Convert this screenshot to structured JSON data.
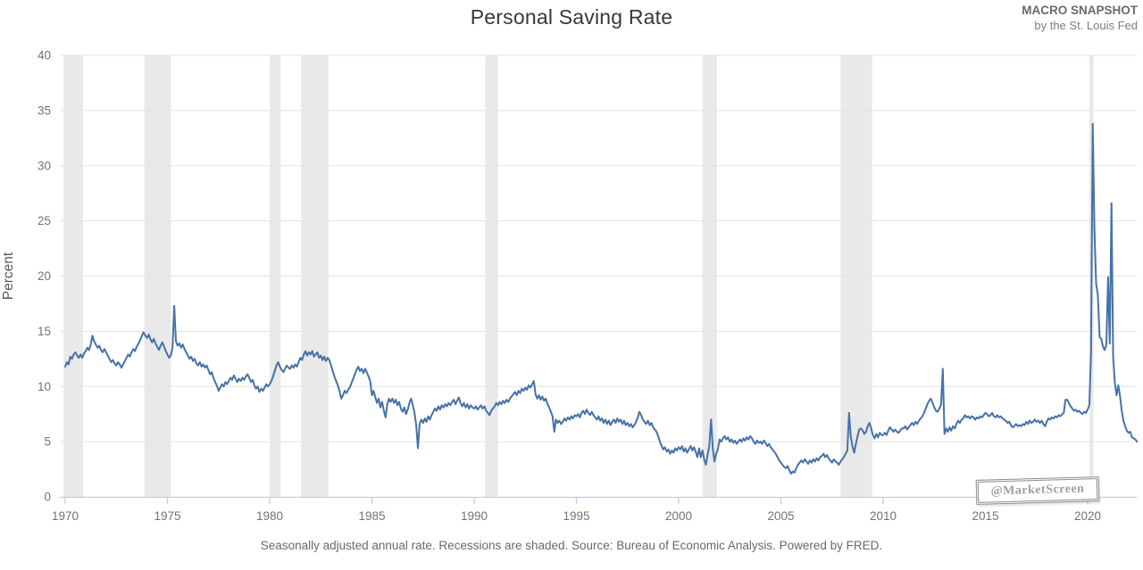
{
  "header": {
    "title": "Personal Saving Rate",
    "brand_line1": "MACRO SNAPSHOT",
    "brand_line2": "by the St. Louis Fed"
  },
  "caption": "Seasonally adjusted annual rate. Recessions are shaded. Source: Bureau of Economic Analysis. Powered by FRED.",
  "watermark": "@MarketScreen",
  "chart_data": {
    "type": "line",
    "title": "Personal Saving Rate",
    "ylabel": "Percent",
    "ylim": [
      0,
      40
    ],
    "yticks": [
      0,
      5,
      10,
      15,
      20,
      25,
      30,
      35,
      40
    ],
    "xticks": [
      1970,
      1975,
      1980,
      1985,
      1990,
      1995,
      2000,
      2005,
      2010,
      2015,
      2020
    ],
    "x_start": 1970.0,
    "x_step": "monthly",
    "x_end": 2022.42,
    "grid": true,
    "legend": "none",
    "line_color": "#4572a7",
    "recession_color": "#e9e9e9",
    "grid_color": "#e3e3e3",
    "axis_color": "#c3cdde",
    "tick_label_color": "#737373",
    "recessions": [
      [
        1969.92,
        1970.87
      ],
      [
        1973.87,
        1975.17
      ],
      [
        1980.0,
        1980.54
      ],
      [
        1981.54,
        1982.87
      ],
      [
        1990.54,
        1991.17
      ],
      [
        2001.17,
        2001.87
      ],
      [
        2007.92,
        2009.46
      ],
      [
        2020.08,
        2020.29
      ]
    ],
    "values": [
      11.8,
      12.2,
      12.0,
      12.7,
      12.5,
      12.9,
      13.1,
      12.8,
      12.6,
      12.9,
      12.6,
      13.0,
      13.2,
      13.5,
      13.3,
      13.8,
      14.6,
      14.1,
      13.8,
      13.5,
      13.7,
      13.3,
      13.1,
      13.4,
      13.1,
      12.8,
      12.5,
      12.2,
      12.4,
      12.1,
      11.9,
      12.2,
      12.0,
      11.7,
      12.0,
      12.3,
      12.6,
      12.9,
      12.7,
      13.1,
      13.4,
      13.2,
      13.6,
      13.9,
      14.2,
      14.6,
      14.9,
      14.6,
      14.4,
      14.7,
      14.3,
      14.0,
      14.3,
      13.9,
      13.6,
      13.3,
      13.7,
      14.0,
      13.6,
      13.2,
      12.9,
      12.6,
      12.8,
      13.5,
      17.3,
      14.1,
      13.7,
      13.9,
      13.5,
      13.8,
      13.4,
      13.1,
      12.8,
      12.5,
      12.7,
      12.3,
      12.5,
      12.1,
      11.9,
      12.2,
      11.8,
      12.0,
      11.7,
      11.9,
      11.5,
      11.1,
      11.3,
      10.8,
      10.4,
      10.1,
      9.6,
      9.9,
      10.2,
      10.0,
      10.4,
      10.2,
      10.5,
      10.8,
      10.6,
      11.0,
      10.7,
      10.4,
      10.7,
      10.5,
      10.8,
      10.6,
      10.9,
      11.1,
      10.8,
      10.4,
      10.6,
      10.1,
      9.8,
      10.0,
      9.5,
      9.8,
      9.6,
      9.9,
      10.2,
      10.0,
      10.2,
      10.5,
      10.9,
      11.4,
      11.9,
      12.2,
      11.8,
      11.5,
      11.3,
      11.6,
      11.9,
      11.7,
      11.6,
      11.9,
      11.7,
      12.0,
      11.8,
      12.2,
      12.6,
      12.4,
      12.9,
      13.2,
      12.8,
      13.1,
      12.9,
      13.2,
      12.7,
      12.9,
      13.1,
      12.6,
      12.8,
      12.4,
      12.7,
      12.3,
      12.6,
      12.4,
      11.9,
      11.4,
      10.9,
      10.5,
      10.1,
      9.6,
      8.9,
      9.2,
      9.6,
      9.4,
      9.7,
      9.9,
      10.3,
      10.7,
      11.1,
      11.5,
      11.8,
      11.4,
      11.6,
      11.2,
      11.6,
      11.3,
      10.9,
      10.5,
      9.2,
      9.6,
      9.0,
      8.5,
      8.9,
      8.1,
      8.6,
      7.8,
      7.2,
      8.4,
      8.9,
      8.6,
      8.9,
      8.5,
      8.8,
      8.3,
      8.6,
      8.0,
      7.7,
      8.1,
      7.5,
      7.9,
      8.5,
      8.9,
      8.3,
      7.6,
      6.5,
      4.4,
      6.6,
      7.0,
      6.7,
      7.1,
      6.8,
      7.3,
      7.0,
      7.4,
      7.7,
      8.0,
      7.8,
      8.2,
      7.9,
      8.3,
      8.1,
      8.4,
      8.2,
      8.5,
      8.3,
      8.6,
      8.8,
      8.4,
      8.7,
      9.0,
      8.5,
      8.2,
      8.5,
      8.1,
      8.4,
      8.0,
      8.3,
      8.1,
      8.0,
      8.2,
      7.9,
      8.1,
      8.3,
      8.0,
      8.2,
      7.8,
      7.6,
      7.4,
      7.8,
      8.0,
      8.2,
      8.5,
      8.3,
      8.6,
      8.4,
      8.7,
      8.5,
      8.8,
      8.6,
      8.9,
      9.1,
      9.3,
      9.5,
      9.2,
      9.6,
      9.4,
      9.8,
      9.6,
      9.9,
      9.7,
      10.1,
      9.9,
      10.2,
      10.5,
      9.3,
      8.9,
      9.2,
      8.8,
      9.1,
      8.7,
      8.9,
      8.4,
      8.1,
      7.7,
      7.3,
      5.9,
      7.0,
      6.7,
      6.9,
      6.6,
      6.8,
      7.1,
      6.9,
      7.2,
      7.0,
      7.3,
      7.1,
      7.4,
      7.3,
      7.5,
      7.2,
      7.6,
      7.8,
      7.5,
      7.9,
      7.6,
      7.4,
      7.7,
      7.4,
      7.2,
      7.0,
      7.3,
      6.9,
      7.1,
      6.7,
      7.0,
      6.6,
      6.9,
      6.5,
      6.8,
      7.0,
      6.7,
      7.1,
      6.8,
      7.0,
      6.6,
      6.9,
      6.5,
      6.7,
      6.4,
      6.6,
      6.3,
      6.5,
      6.8,
      7.2,
      7.7,
      7.4,
      7.0,
      6.8,
      6.6,
      6.9,
      6.5,
      6.7,
      6.3,
      6.1,
      5.9,
      5.5,
      5.0,
      4.6,
      4.3,
      4.5,
      4.1,
      4.3,
      3.9,
      4.2,
      4.0,
      4.4,
      4.2,
      4.5,
      4.3,
      4.6,
      4.1,
      4.4,
      4.0,
      4.3,
      4.6,
      4.2,
      4.5,
      4.1,
      3.6,
      4.4,
      3.6,
      4.2,
      3.4,
      2.9,
      3.8,
      4.6,
      7.0,
      4.4,
      3.2,
      3.9,
      4.3,
      5.2,
      5.0,
      5.3,
      5.5,
      5.2,
      5.4,
      5.0,
      5.2,
      4.9,
      5.1,
      4.8,
      5.0,
      5.2,
      5.0,
      5.3,
      5.1,
      5.4,
      5.2,
      5.5,
      5.3,
      5.0,
      4.8,
      5.1,
      4.9,
      5.0,
      4.8,
      5.1,
      4.9,
      4.6,
      4.8,
      4.5,
      4.3,
      4.1,
      3.9,
      3.6,
      3.3,
      3.1,
      2.9,
      2.7,
      2.6,
      2.8,
      2.4,
      2.1,
      2.3,
      2.2,
      2.6,
      2.9,
      3.1,
      3.3,
      3.1,
      3.4,
      3.2,
      3.0,
      3.3,
      3.1,
      3.4,
      3.2,
      3.5,
      3.3,
      3.6,
      3.7,
      3.9,
      3.6,
      3.8,
      3.5,
      3.3,
      3.1,
      3.4,
      3.2,
      3.1,
      2.9,
      3.2,
      3.4,
      3.6,
      3.9,
      4.2,
      7.6,
      5.5,
      4.6,
      4.0,
      4.8,
      5.5,
      6.1,
      6.2,
      6.0,
      5.7,
      5.9,
      6.4,
      6.7,
      6.2,
      5.6,
      5.3,
      5.7,
      5.4,
      5.8,
      5.6,
      5.6,
      5.8,
      5.6,
      6.0,
      6.3,
      6.1,
      5.9,
      6.1,
      5.9,
      5.8,
      6.0,
      6.2,
      6.2,
      6.4,
      6.1,
      6.3,
      6.5,
      6.7,
      6.5,
      6.8,
      6.6,
      6.9,
      7.1,
      7.3,
      7.6,
      8.0,
      8.4,
      8.7,
      8.9,
      8.5,
      8.1,
      7.8,
      7.7,
      8.0,
      8.4,
      11.6,
      5.7,
      6.2,
      5.9,
      6.3,
      6.0,
      6.4,
      6.2,
      6.6,
      6.9,
      6.7,
      7.0,
      7.1,
      7.4,
      7.2,
      7.3,
      7.1,
      7.3,
      7.2,
      7.0,
      7.2,
      7.1,
      7.3,
      7.2,
      7.4,
      7.6,
      7.5,
      7.3,
      7.4,
      7.6,
      7.3,
      7.2,
      7.4,
      7.2,
      7.3,
      7.1,
      7.0,
      6.9,
      6.7,
      6.8,
      6.5,
      6.3,
      6.4,
      6.6,
      6.4,
      6.5,
      6.4,
      6.6,
      6.5,
      6.8,
      6.6,
      6.9,
      6.7,
      6.8,
      7.0,
      6.8,
      6.9,
      6.7,
      6.9,
      6.6,
      6.4,
      6.8,
      7.1,
      7.0,
      7.2,
      7.1,
      7.3,
      7.2,
      7.4,
      7.3,
      7.5,
      7.6,
      8.8,
      8.8,
      8.5,
      8.2,
      8.0,
      7.8,
      7.9,
      7.7,
      7.8,
      7.6,
      7.5,
      7.7,
      7.6,
      7.9,
      8.3,
      13.0,
      33.8,
      24.3,
      19.3,
      18.3,
      14.5,
      14.3,
      13.6,
      13.3,
      13.8,
      19.9,
      13.9,
      26.6,
      12.6,
      10.3,
      9.2,
      10.1,
      9.1,
      7.8,
      6.9,
      6.4,
      6.0,
      5.8,
      5.9,
      5.4,
      5.3,
      5.2,
      5.0
    ]
  }
}
